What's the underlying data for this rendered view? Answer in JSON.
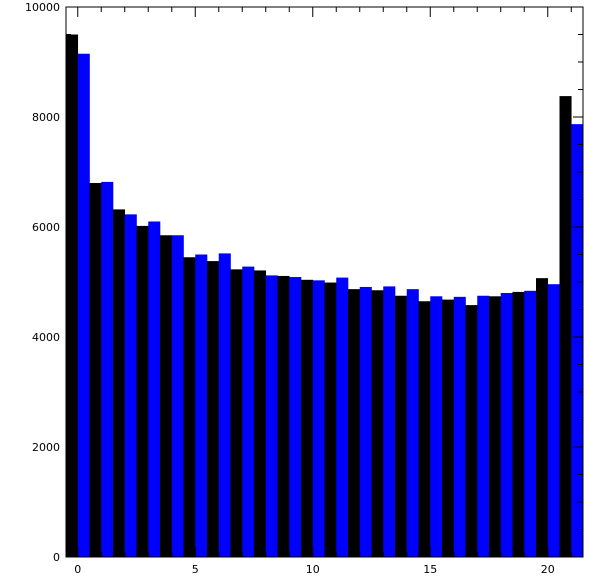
{
  "chart_data": {
    "type": "bar",
    "title": "",
    "xlabel": "",
    "ylabel": "",
    "xlim": [
      -0.5,
      21.5
    ],
    "ylim": [
      0,
      10000
    ],
    "grid": false,
    "x_ticks": [
      0,
      5,
      10,
      15,
      20
    ],
    "y_ticks": [
      0,
      2000,
      4000,
      6000,
      8000,
      10000
    ],
    "x_tick_labels": [
      "0",
      "5",
      "10",
      "15",
      "20"
    ],
    "y_tick_labels": [
      "0",
      "2000",
      "4000",
      "6000",
      "8000",
      "10000"
    ],
    "categories": [
      0,
      1,
      2,
      3,
      4,
      5,
      6,
      7,
      8,
      9,
      10,
      11,
      12,
      13,
      14,
      15,
      16,
      17,
      18,
      19,
      20,
      21
    ],
    "series": [
      {
        "color": "#000000",
        "values": [
          9500,
          6800,
          6320,
          6020,
          5850,
          5450,
          5380,
          5230,
          5210,
          5110,
          5040,
          4990,
          4870,
          4850,
          4750,
          4650,
          4680,
          4580,
          4740,
          4820,
          5070,
          8380
        ]
      },
      {
        "color": "#0000ff",
        "values": [
          9150,
          6820,
          6230,
          6100,
          5850,
          5500,
          5520,
          5280,
          5120,
          5090,
          5030,
          5080,
          4910,
          4920,
          4870,
          4740,
          4730,
          4750,
          4800,
          4840,
          4960,
          7870
        ]
      }
    ]
  }
}
